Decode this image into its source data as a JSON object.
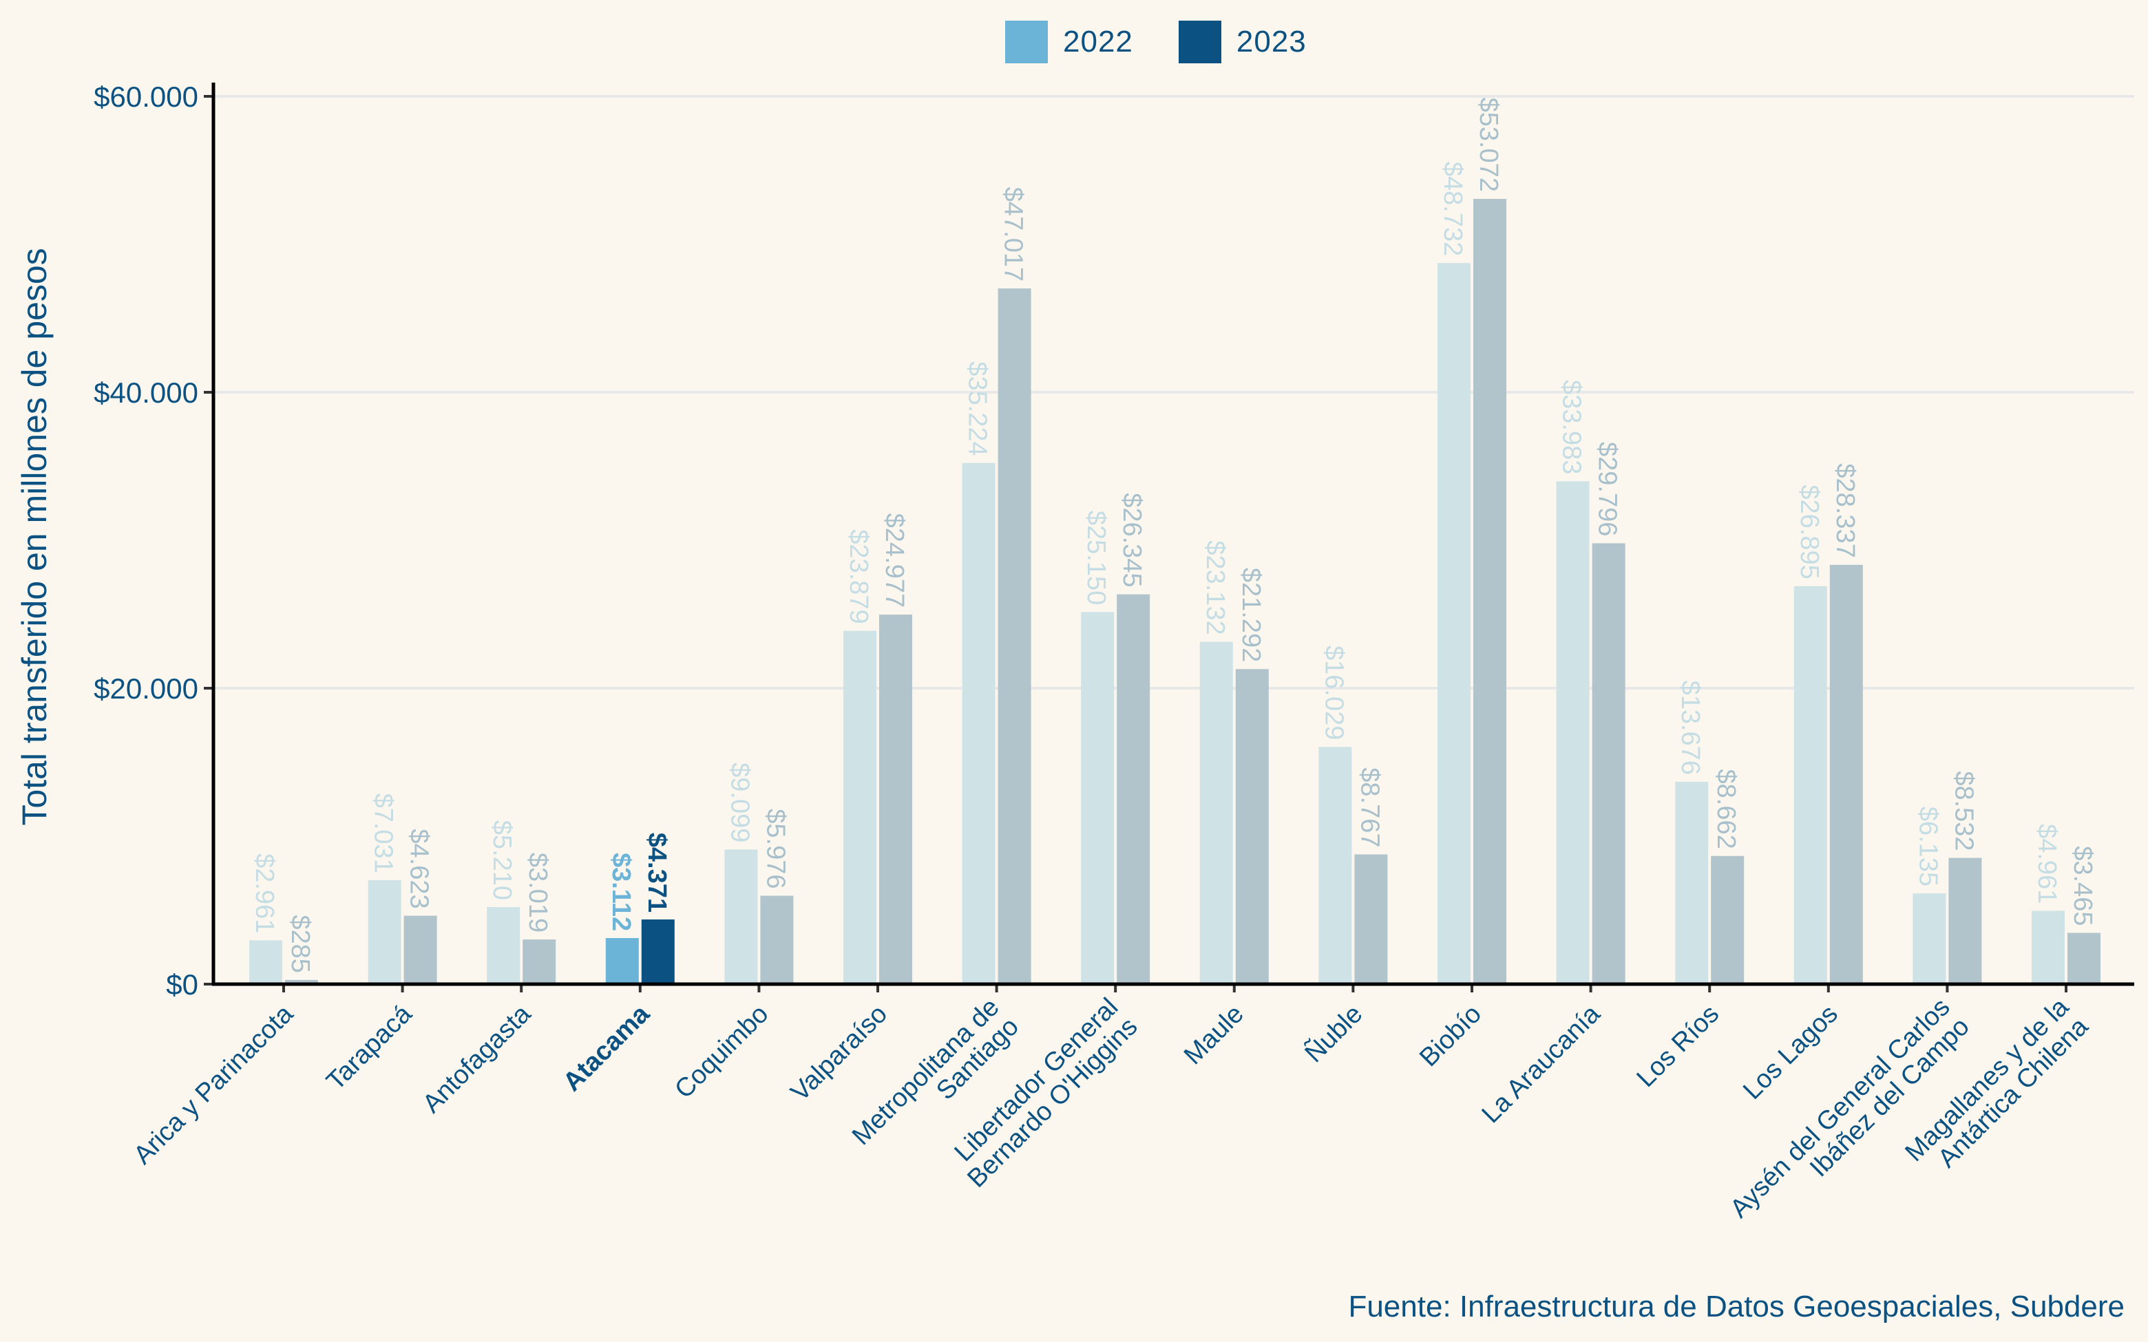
{
  "chart_data": {
    "type": "bar",
    "title": "",
    "xlabel": "",
    "ylabel": "Total transferido en millones de pesos",
    "ylim": [
      0,
      61000
    ],
    "yticks": [
      0,
      20000,
      40000,
      60000
    ],
    "ytick_labels": [
      "$0",
      "$20.000",
      "$40.000",
      "$60.000"
    ],
    "grid": "horizontal",
    "legend_position": "top-center",
    "highlighted_category": "Atacama",
    "categories": [
      "Arica y Parinacota",
      "Tarapacá",
      "Antofagasta",
      "Atacama",
      "Coquimbo",
      "Valparaíso",
      "Metropolitana de\nSantiago",
      "Libertador General\nBernardo O'Higgins",
      "Maule",
      "Ñuble",
      "Biobío",
      "La Araucanía",
      "Los Ríos",
      "Los Lagos",
      "Aysén del General Carlos\nIbáñez del Campo",
      "Magallanes y de la\nAntártica Chilena"
    ],
    "series": [
      {
        "name": "2022",
        "color": "#6cb4d7",
        "muted_color": "#cfe2e6",
        "label_muted_color": "#c4dde5",
        "values": [
          2961,
          7031,
          5210,
          3112,
          9099,
          23879,
          35224,
          25150,
          23132,
          16029,
          48732,
          33983,
          13676,
          26895,
          6135,
          4961
        ],
        "labels": [
          "$2.961",
          "$7.031",
          "$5.210",
          "$3.112",
          "$9.099",
          "$23.879",
          "$35.224",
          "$25.150",
          "$23.132",
          "$16.029",
          "$48.732",
          "$33.983",
          "$13.676",
          "$26.895",
          "$6.135",
          "$4.961"
        ]
      },
      {
        "name": "2023",
        "color": "#0b5283",
        "muted_color": "#b1c4cc",
        "label_muted_color": "#a8c0cc",
        "values": [
          285,
          4623,
          3019,
          4371,
          5976,
          24977,
          47017,
          26345,
          21292,
          8767,
          53072,
          29796,
          8662,
          28337,
          8532,
          3465
        ],
        "labels": [
          "$285",
          "$4.623",
          "$3.019",
          "$4.371",
          "$5.976",
          "$24.977",
          "$47.017",
          "$26.345",
          "$21.292",
          "$8.767",
          "$53.072",
          "$29.796",
          "$8.662",
          "$28.337",
          "$8.532",
          "$3.465"
        ]
      }
    ],
    "source": "Fuente: Infraestructura de Datos Geoespaciales, Subdere"
  },
  "colors": {
    "background": "#fbf7ee",
    "text": "#0b5283",
    "grid": "#e8e8e8",
    "axis": "#000000"
  }
}
